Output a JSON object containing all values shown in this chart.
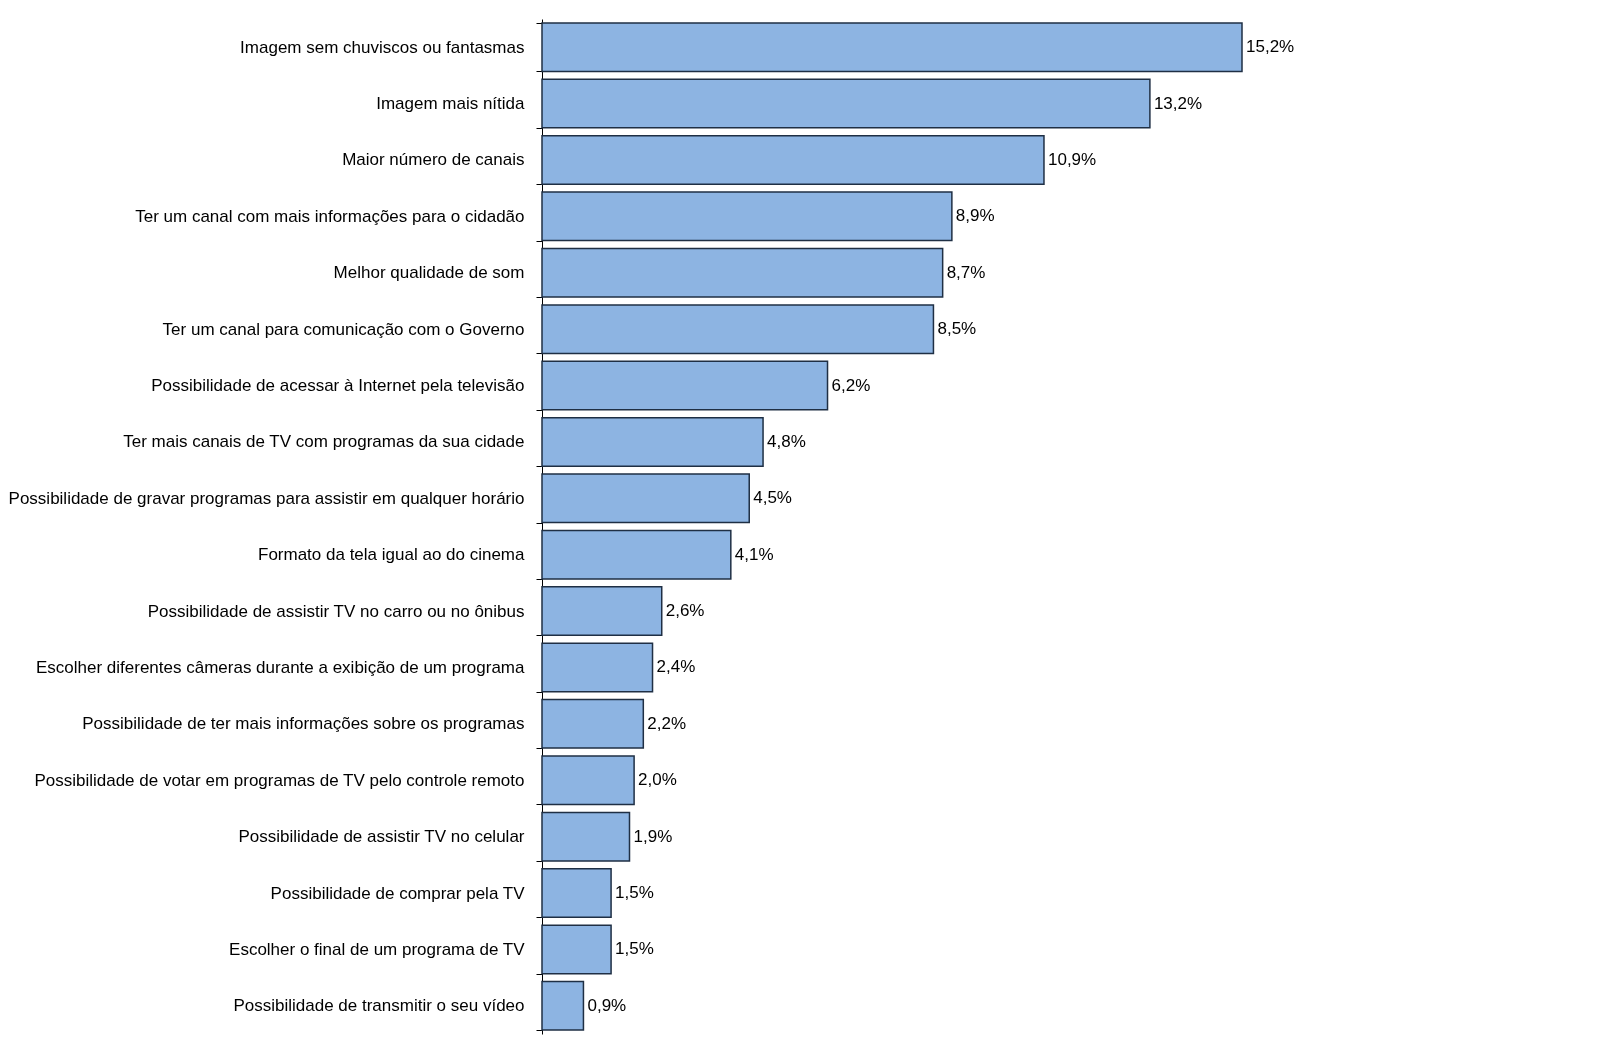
{
  "chart_data": {
    "type": "bar",
    "orientation": "horizontal",
    "color": "#8db4e2",
    "categories": [
      "Imagem sem chuviscos ou fantasmas",
      "Imagem mais nítida",
      "Maior número de canais",
      "Ter um canal com mais informações para o cidadão",
      "Melhor qualidade de som",
      "Ter um canal para comunicação com o Governo",
      "Possibilidade de acessar à Internet pela televisão",
      "Ter mais canais de TV com programas da sua cidade",
      "Possibilidade de gravar programas para assistir em qualquer horário",
      "Formato da tela igual ao do cinema",
      "Possibilidade de assistir TV no carro ou no ônibus",
      "Escolher diferentes câmeras durante a exibição de um programa",
      "Possibilidade de ter mais informações sobre os programas",
      "Possibilidade de votar em programas de TV pelo controle remoto",
      "Possibilidade de assistir TV no celular",
      "Possibilidade de comprar pela TV",
      "Escolher o final de um programa de TV",
      "Possibilidade de transmitir o seu vídeo"
    ],
    "values": [
      15.2,
      13.2,
      10.9,
      8.9,
      8.7,
      8.5,
      6.2,
      4.8,
      4.5,
      4.1,
      2.6,
      2.4,
      2.2,
      2.0,
      1.9,
      1.5,
      1.5,
      0.9
    ],
    "value_labels": [
      "15,2%",
      "13,2%",
      "10,9%",
      "8,9%",
      "8,7%",
      "8,5%",
      "6,2%",
      "4,8%",
      "4,5%",
      "4,1%",
      "2,6%",
      "2,4%",
      "2,2%",
      "2,0%",
      "1,9%",
      "1,5%",
      "1,5%",
      "0,9%"
    ]
  }
}
